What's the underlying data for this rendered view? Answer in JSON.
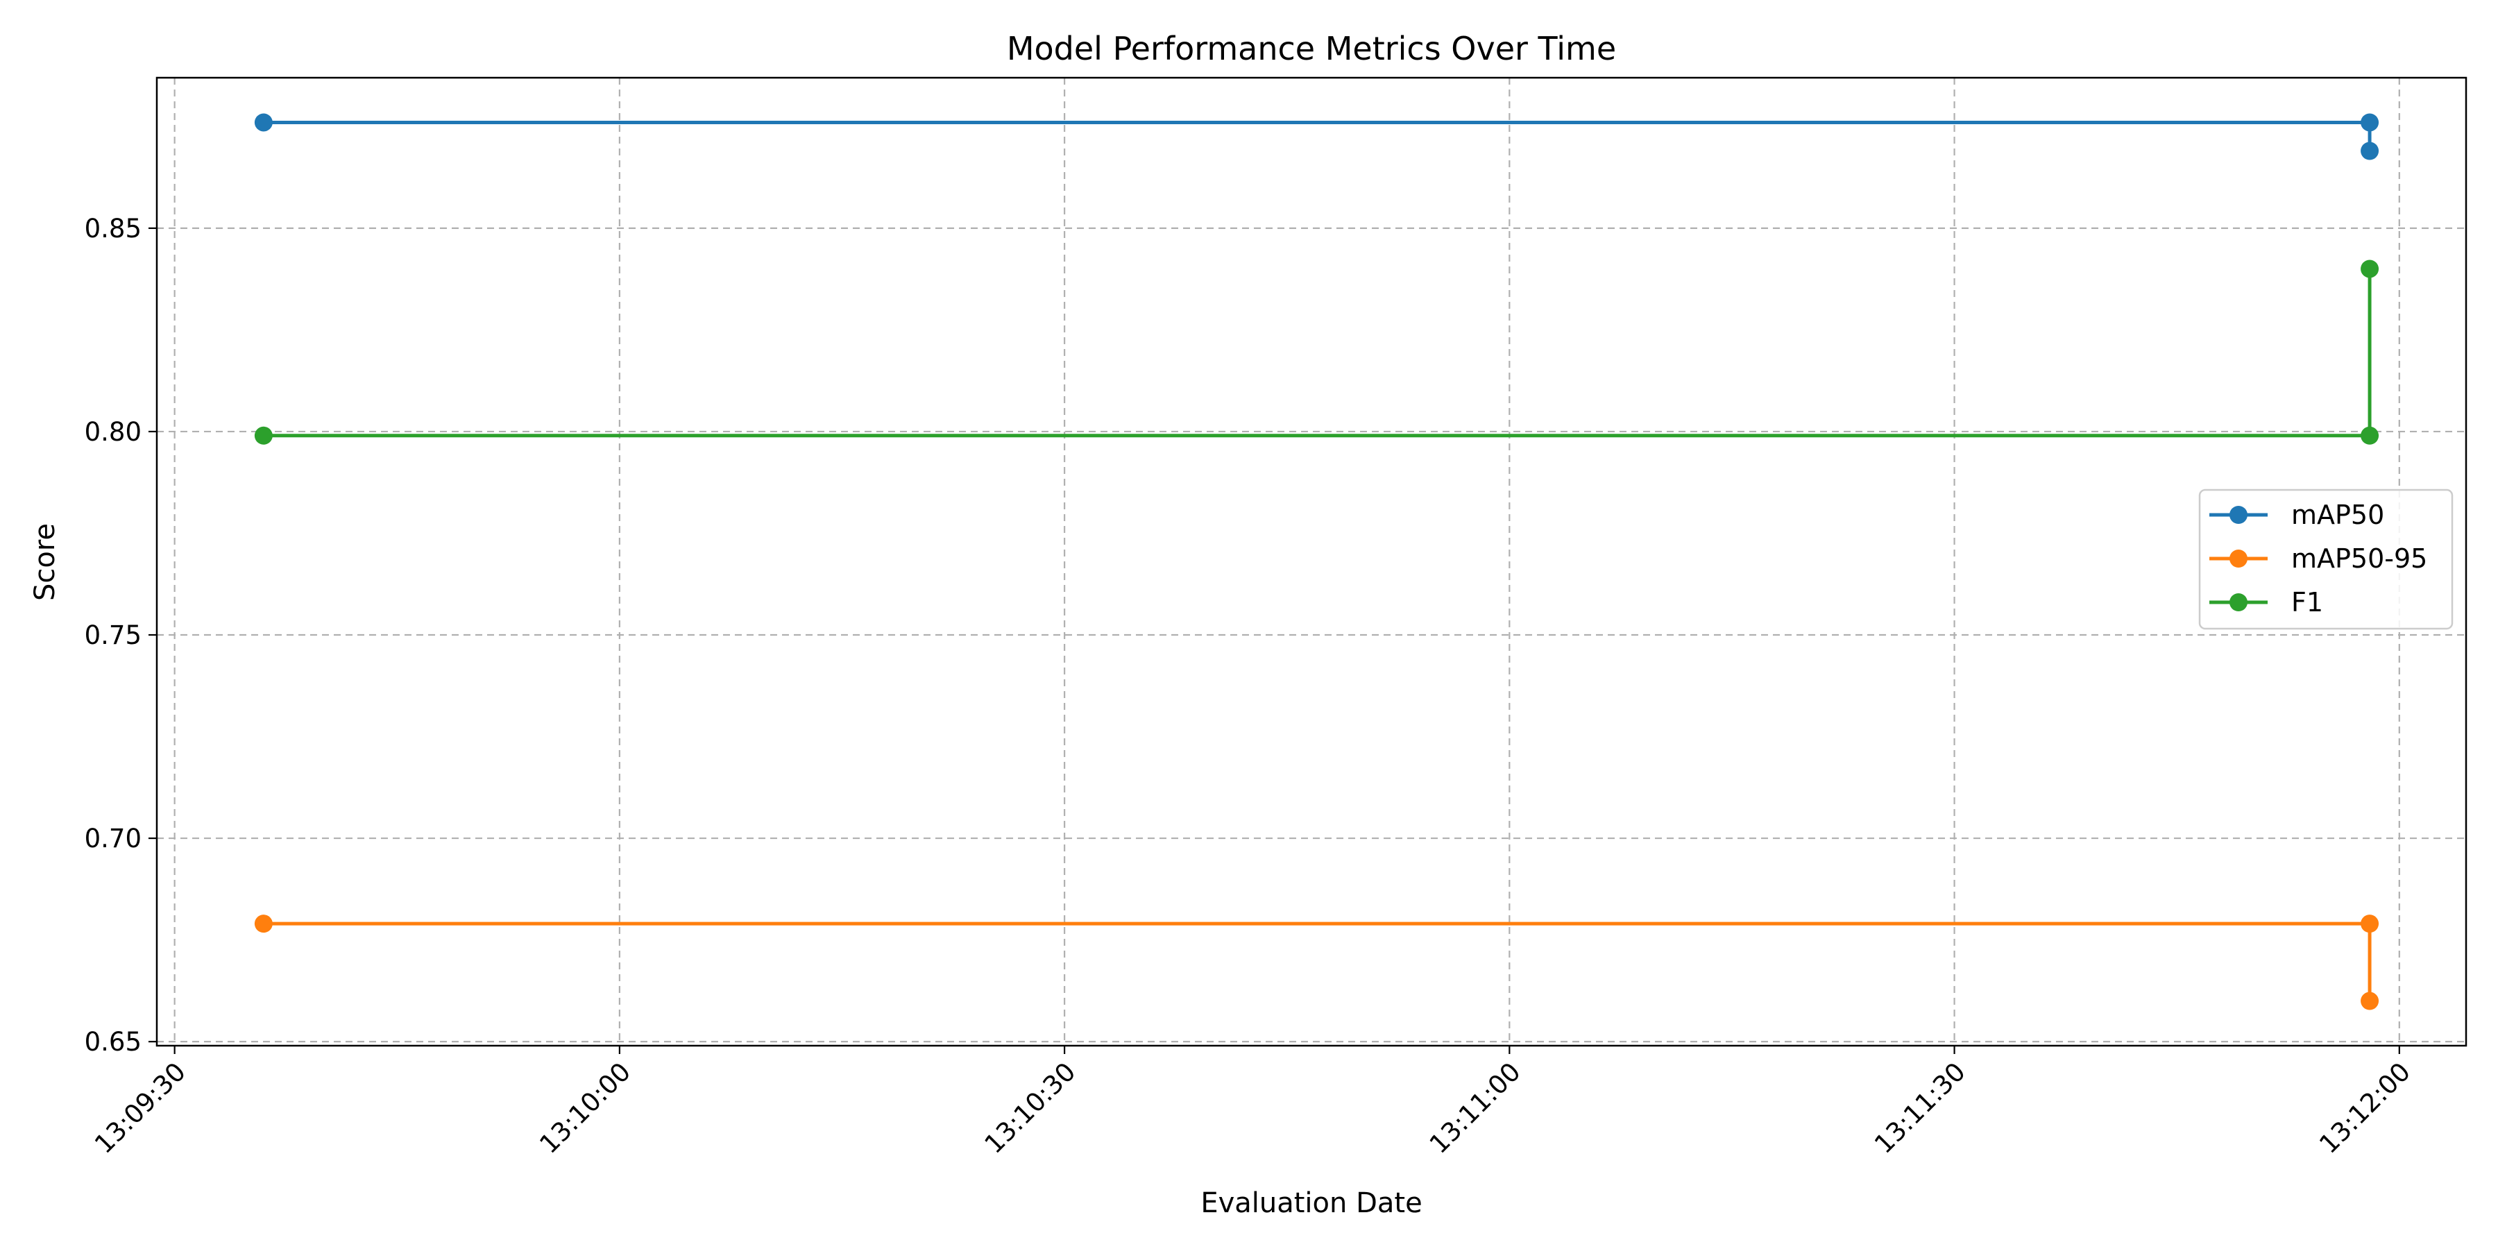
{
  "chart_data": {
    "type": "line",
    "title": "Model Performance Metrics Over Time",
    "xlabel": "Evaluation Date",
    "ylabel": "Score",
    "x_ticks": [
      "13:09:30",
      "13:10:00",
      "13:10:30",
      "13:11:00",
      "13:11:30",
      "13:12:00"
    ],
    "y_ticks": [
      "0.65",
      "0.70",
      "0.75",
      "0.80",
      "0.85"
    ],
    "x_tick_values": [
      "13:09:30",
      "13:10:00",
      "13:10:30",
      "13:11:00",
      "13:11:30",
      "13:12:00"
    ],
    "y_tick_values": [
      0.65,
      0.7,
      0.75,
      0.8,
      0.85
    ],
    "xlim": [
      "13:09:28.8",
      "13:12:04.5"
    ],
    "ylim": [
      0.649,
      0.887
    ],
    "grid": true,
    "legend_position": "center-right",
    "series": [
      {
        "name": "mAP50",
        "color": "#1f77b4",
        "points": [
          {
            "x": "13:09:36",
            "y": 0.876
          },
          {
            "x": "13:11:58",
            "y": 0.876
          },
          {
            "x": "13:11:58",
            "y": 0.869
          }
        ]
      },
      {
        "name": "mAP50-95",
        "color": "#ff7f0e",
        "points": [
          {
            "x": "13:09:36",
            "y": 0.679
          },
          {
            "x": "13:11:58",
            "y": 0.679
          },
          {
            "x": "13:11:58",
            "y": 0.66
          }
        ]
      },
      {
        "name": "F1",
        "color": "#2ca02c",
        "points": [
          {
            "x": "13:09:36",
            "y": 0.799
          },
          {
            "x": "13:11:58",
            "y": 0.799
          },
          {
            "x": "13:11:58",
            "y": 0.84
          }
        ]
      }
    ]
  }
}
